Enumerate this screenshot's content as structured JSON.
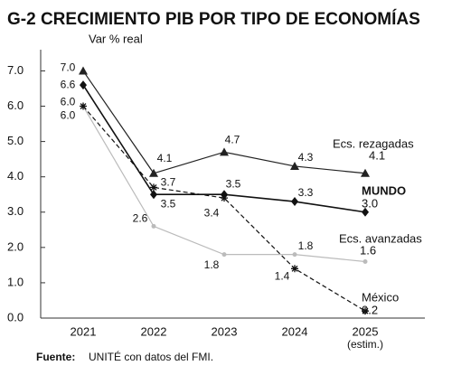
{
  "chart_data": {
    "type": "line",
    "title": "G-2  CRECIMIENTO PIB POR TIPO DE ECONOMÍAS",
    "subtitle": "Var % real",
    "categories": [
      "2021",
      "2022",
      "2023",
      "2024",
      "2025"
    ],
    "category_note": "(estim.)",
    "ylim": [
      0,
      7.6
    ],
    "yticks": [
      {
        "value": 0,
        "label": "0.0"
      },
      {
        "value": 1,
        "label": "1.0"
      },
      {
        "value": 2,
        "label": "2.0"
      },
      {
        "value": 3,
        "label": "3.0"
      },
      {
        "value": 4,
        "label": "4.0"
      },
      {
        "value": 5,
        "label": "5.0"
      },
      {
        "value": 6,
        "label": "6.0"
      },
      {
        "value": 7,
        "label": "7.0"
      }
    ],
    "grid": false,
    "series": [
      {
        "name": "Ecs. rezagadas",
        "color": "#222222",
        "marker": "triangle",
        "values": [
          7.0,
          4.1,
          4.7,
          4.3,
          4.1
        ],
        "value_labels": [
          "7.0",
          "4.1",
          "4.7",
          "4.3",
          "4.1"
        ]
      },
      {
        "name": "MUNDO",
        "color": "#111111",
        "marker": "diamond",
        "values": [
          6.6,
          3.5,
          3.5,
          3.3,
          3.0
        ],
        "value_labels": [
          "6.6",
          "3.5",
          "3.5",
          "3.3",
          "3.0"
        ]
      },
      {
        "name": "Ecs. avanzadas",
        "color": "#bbbbbb",
        "marker": "circle",
        "values": [
          6.0,
          2.6,
          1.8,
          1.8,
          1.6
        ],
        "value_labels": [
          "6.0",
          "2.6",
          "1.8",
          "1.8",
          "1.6"
        ]
      },
      {
        "name": "México",
        "color": "#111111",
        "marker": "asterisk",
        "dashed": true,
        "values": [
          6.0,
          3.7,
          3.4,
          1.4,
          0.2
        ],
        "value_labels": [
          "6.0",
          "3.7",
          "3.4",
          "1.4",
          "0.2"
        ]
      }
    ],
    "source": {
      "label": "Fuente:",
      "text": "UNITÉ con datos del FMI."
    }
  }
}
